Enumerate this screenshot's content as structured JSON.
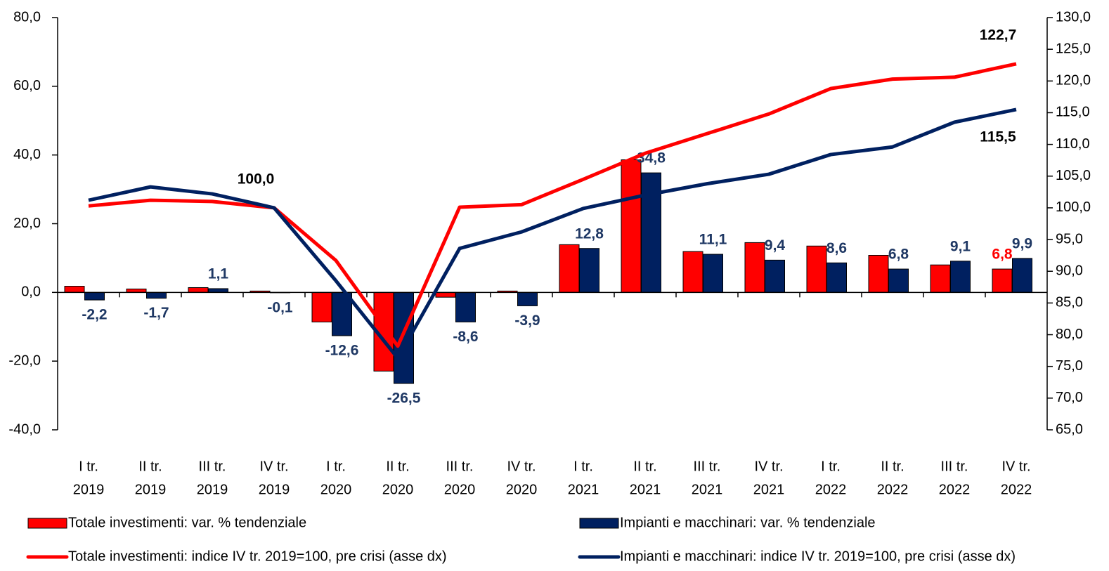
{
  "chart_data": {
    "type": "bar-line",
    "categories": [
      [
        "I tr.",
        "2019"
      ],
      [
        "II tr.",
        "2019"
      ],
      [
        "III tr.",
        "2019"
      ],
      [
        "IV tr.",
        "2019"
      ],
      [
        "I tr.",
        "2020"
      ],
      [
        "II tr.",
        "2020"
      ],
      [
        "III tr.",
        "2020"
      ],
      [
        "IV tr.",
        "2020"
      ],
      [
        "I tr.",
        "2021"
      ],
      [
        "II tr.",
        "2021"
      ],
      [
        "III tr.",
        "2021"
      ],
      [
        "IV tr.",
        "2021"
      ],
      [
        "I tr.",
        "2022"
      ],
      [
        "II tr.",
        "2022"
      ],
      [
        "III tr.",
        "2022"
      ],
      [
        "IV tr.",
        "2022"
      ]
    ],
    "ylim": [
      -40,
      80
    ],
    "yticks": [
      {
        "value": -40,
        "label": "-40,0"
      },
      {
        "value": -20,
        "label": "-20,0"
      },
      {
        "value": 0,
        "label": "0,0"
      },
      {
        "value": 20,
        "label": "20,0"
      },
      {
        "value": 40,
        "label": "40,0"
      },
      {
        "value": 60,
        "label": "60,0"
      },
      {
        "value": 80,
        "label": "80,0"
      }
    ],
    "y2lim": [
      65,
      130
    ],
    "y2ticks": [
      {
        "value": 65,
        "label": "65,0"
      },
      {
        "value": 70,
        "label": "70,0"
      },
      {
        "value": 75,
        "label": "75,0"
      },
      {
        "value": 80,
        "label": "80,0"
      },
      {
        "value": 85,
        "label": "85,0"
      },
      {
        "value": 90,
        "label": "90,0"
      },
      {
        "value": 95,
        "label": "95,0"
      },
      {
        "value": 100,
        "label": "100,0"
      },
      {
        "value": 105,
        "label": "105,0"
      },
      {
        "value": 110,
        "label": "110,0"
      },
      {
        "value": 115,
        "label": "115,0"
      },
      {
        "value": 120,
        "label": "120,0"
      },
      {
        "value": 125,
        "label": "125,0"
      },
      {
        "value": 130,
        "label": "130,0"
      }
    ],
    "series": [
      {
        "name": "Totale investimenti: var. % tendenziale",
        "type": "bar",
        "color": "#ff0000",
        "label_color": "#ff0000",
        "values": [
          1.8,
          1.0,
          1.4,
          0.4,
          -8.6,
          -22.9,
          -1.4,
          0.4,
          13.9,
          38.6,
          11.9,
          14.5,
          13.5,
          10.8,
          8.0,
          6.8
        ],
        "value_labels": [
          null,
          null,
          null,
          null,
          null,
          null,
          null,
          null,
          null,
          null,
          null,
          null,
          null,
          null,
          null,
          "6,8"
        ]
      },
      {
        "name": "Impianti e macchinari: var. % tendenziale",
        "type": "bar",
        "color": "#002060",
        "label_color": "#1f3864",
        "values": [
          -2.2,
          -1.7,
          1.1,
          -0.1,
          -12.6,
          -26.5,
          -8.6,
          -3.9,
          12.8,
          34.8,
          11.1,
          9.4,
          8.6,
          6.8,
          9.1,
          9.9
        ],
        "value_labels": [
          "-2,2",
          "-1,7",
          "1,1",
          "-0,1",
          "-12,6",
          "-26,5",
          "-8,6",
          "-3,9",
          "12,8",
          "34,8",
          "11,1",
          "9,4",
          "8,6",
          "6,8",
          "9,1",
          "9,9"
        ]
      },
      {
        "name": "Totale investimenti: indice IV tr. 2019=100, pre crisi (asse dx)",
        "type": "line",
        "axis": "y2",
        "color": "#ff0000",
        "label_color": "#000000",
        "values": [
          100.3,
          101.2,
          101.0,
          100.0,
          91.7,
          78.2,
          100.1,
          100.5,
          104.5,
          108.6,
          111.7,
          114.8,
          118.8,
          120.3,
          120.6,
          122.7
        ],
        "value_labels": [
          null,
          null,
          null,
          "100,0",
          null,
          null,
          null,
          null,
          null,
          null,
          null,
          null,
          null,
          null,
          null,
          "122,7"
        ]
      },
      {
        "name": "Impianti e macchinari: indice IV tr. 2019=100, pre crisi (asse dx)",
        "type": "line",
        "axis": "y2",
        "color": "#002060",
        "label_color": "#000000",
        "values": [
          101.2,
          103.3,
          102.2,
          100.0,
          88.5,
          76.3,
          93.6,
          96.2,
          99.9,
          102.0,
          103.8,
          105.3,
          108.4,
          109.6,
          113.5,
          115.5
        ],
        "value_labels": [
          null,
          null,
          null,
          null,
          null,
          null,
          null,
          null,
          null,
          null,
          null,
          null,
          null,
          null,
          null,
          "115,5"
        ]
      }
    ]
  }
}
